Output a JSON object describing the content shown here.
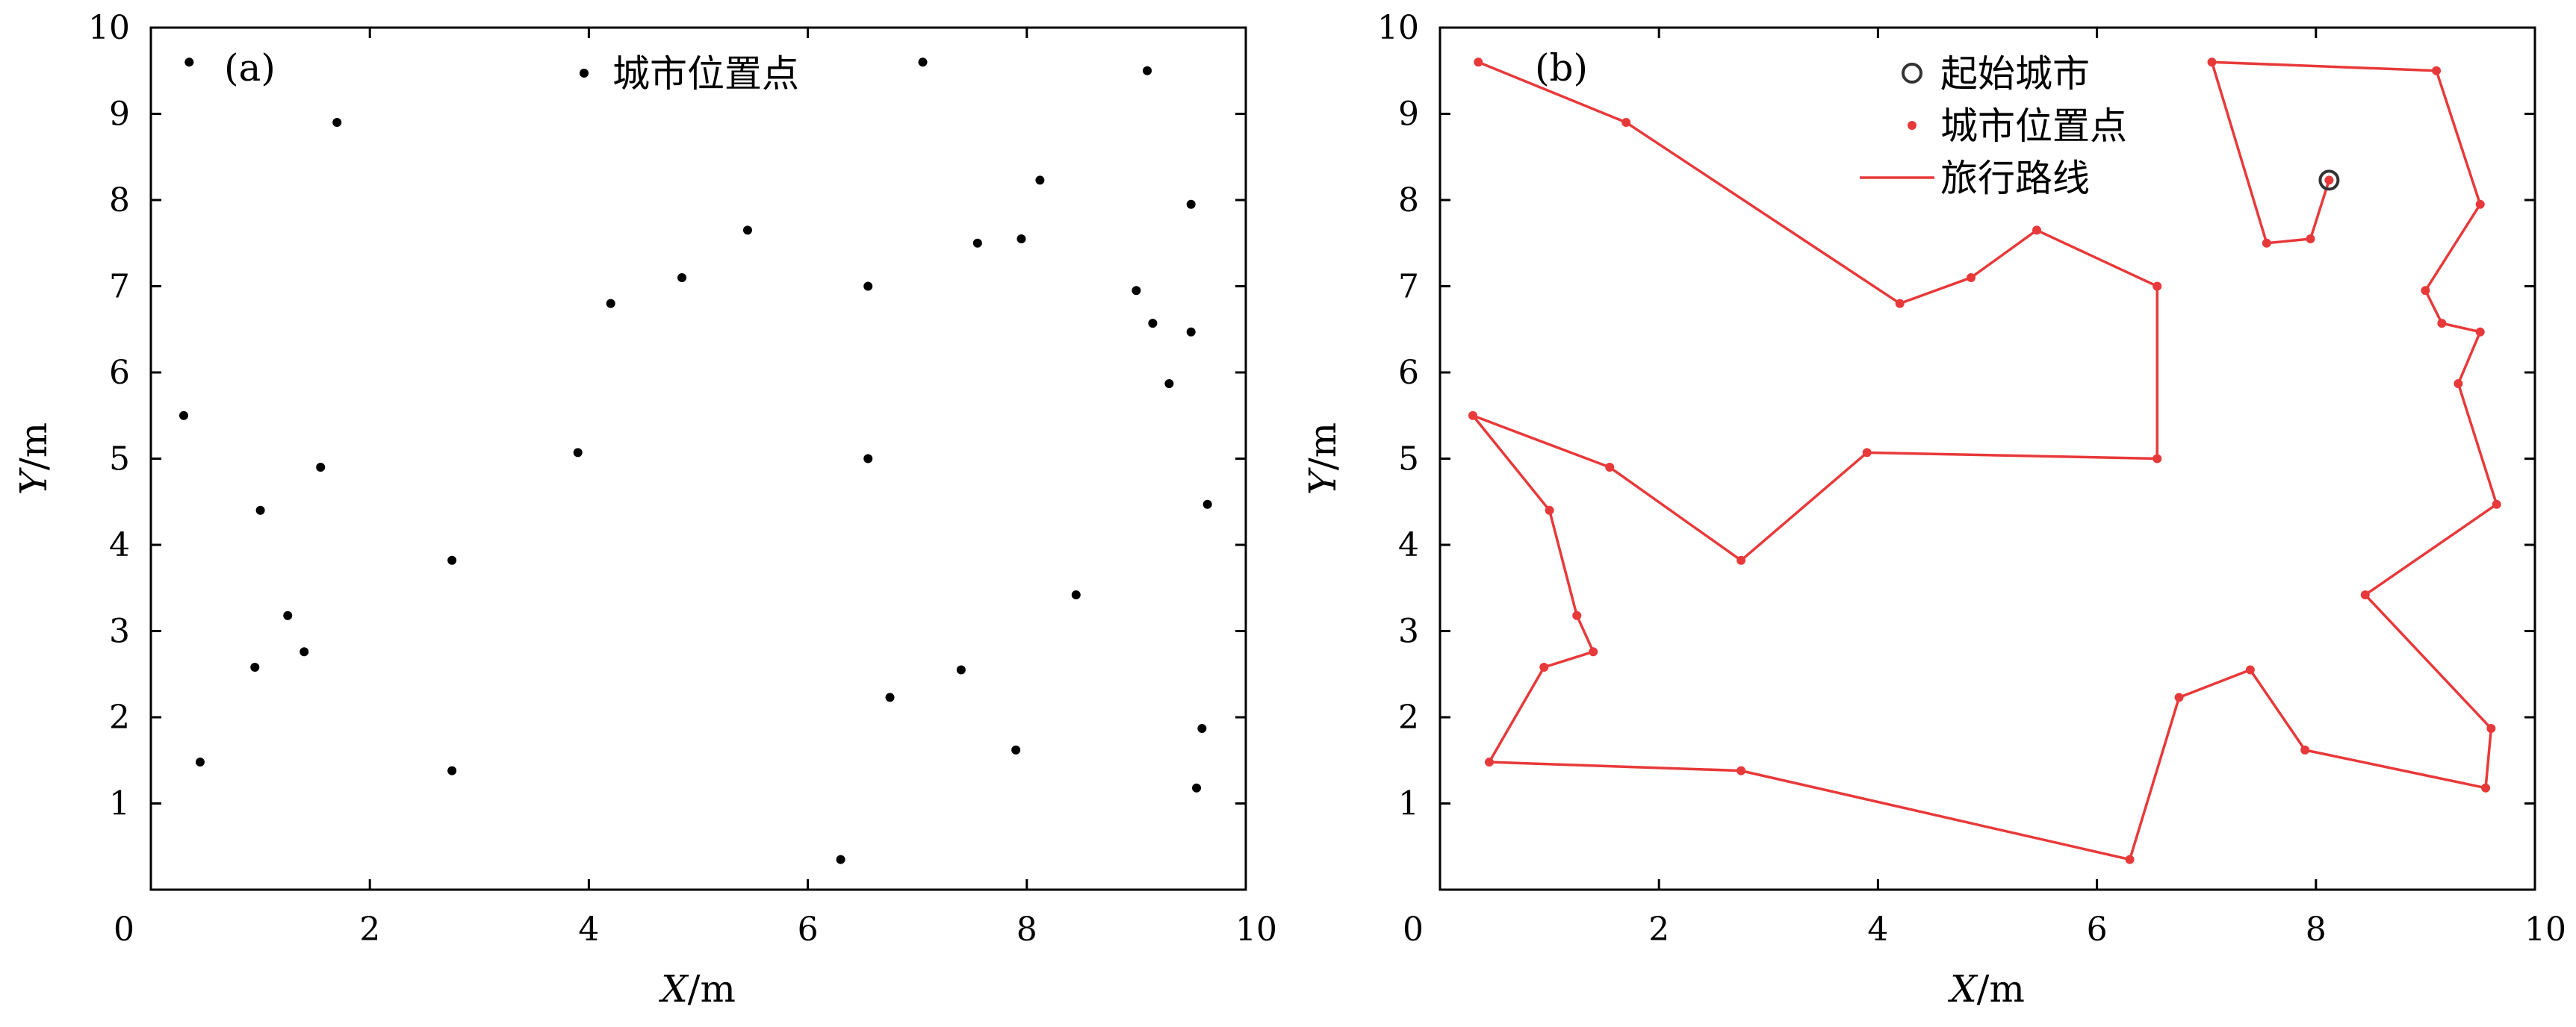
{
  "chart_data": [
    {
      "panel": "(a)",
      "type": "scatter",
      "xlabel_var": "X",
      "xlabel_unit": "/m",
      "ylabel_var": "Y",
      "ylabel_unit": "/m",
      "xlim": [
        0,
        10
      ],
      "ylim": [
        0,
        10
      ],
      "xticks": [
        "0",
        "2",
        "4",
        "6",
        "8",
        "10"
      ],
      "yticks": [
        "1",
        "2",
        "3",
        "4",
        "5",
        "6",
        "7",
        "8",
        "9",
        "10"
      ],
      "legend": [
        {
          "label": "城市位置点",
          "marker": "dot",
          "color": "#000000"
        }
      ],
      "series": [
        {
          "name": "城市位置点",
          "color": "#000000",
          "points": [
            [
              0.35,
              9.6
            ],
            [
              1.7,
              8.9
            ],
            [
              0.3,
              5.5
            ],
            [
              1.0,
              4.4
            ],
            [
              1.55,
              4.9
            ],
            [
              1.25,
              3.18
            ],
            [
              1.4,
              2.76
            ],
            [
              0.95,
              2.58
            ],
            [
              0.45,
              1.48
            ],
            [
              2.75,
              3.82
            ],
            [
              2.75,
              1.38
            ],
            [
              3.9,
              5.07
            ],
            [
              4.2,
              6.8
            ],
            [
              4.85,
              7.1
            ],
            [
              5.45,
              7.65
            ],
            [
              6.55,
              7.0
            ],
            [
              6.55,
              5.0
            ],
            [
              7.05,
              9.6
            ],
            [
              7.55,
              7.5
            ],
            [
              7.95,
              7.55
            ],
            [
              8.12,
              8.23
            ],
            [
              9.1,
              9.5
            ],
            [
              9.5,
              7.95
            ],
            [
              9.0,
              6.95
            ],
            [
              9.15,
              6.57
            ],
            [
              9.5,
              6.47
            ],
            [
              9.3,
              5.87
            ],
            [
              9.65,
              4.47
            ],
            [
              8.45,
              3.42
            ],
            [
              9.6,
              1.87
            ],
            [
              9.55,
              1.18
            ],
            [
              7.9,
              1.62
            ],
            [
              7.4,
              2.55
            ],
            [
              6.75,
              2.23
            ],
            [
              6.3,
              0.35
            ]
          ]
        }
      ]
    },
    {
      "panel": "(b)",
      "type": "line",
      "xlabel_var": "X",
      "xlabel_unit": "/m",
      "ylabel_var": "Y",
      "ylabel_unit": "/m",
      "xlim": [
        0,
        10
      ],
      "ylim": [
        0,
        10
      ],
      "xticks": [
        "0",
        "2",
        "4",
        "6",
        "8",
        "10"
      ],
      "yticks": [
        "1",
        "2",
        "3",
        "4",
        "5",
        "6",
        "7",
        "8",
        "9",
        "10"
      ],
      "legend": [
        {
          "label": "起始城市",
          "marker": "open-circle",
          "color": "#333333"
        },
        {
          "label": "城市位置点",
          "marker": "dot",
          "color": "#e8393a"
        },
        {
          "label": "旅行路线",
          "marker": "line",
          "color": "#e8393a"
        }
      ],
      "start_city": [
        8.12,
        8.23
      ],
      "route_color": "#e8393a",
      "route": [
        [
          8.12,
          8.23
        ],
        [
          7.95,
          7.55
        ],
        [
          7.55,
          7.5
        ],
        [
          7.05,
          9.6
        ],
        [
          9.1,
          9.5
        ],
        [
          9.5,
          7.95
        ],
        [
          9.0,
          6.95
        ],
        [
          9.15,
          6.57
        ],
        [
          9.5,
          6.47
        ],
        [
          9.3,
          5.87
        ],
        [
          9.65,
          4.47
        ],
        [
          8.45,
          3.42
        ],
        [
          9.6,
          1.87
        ],
        [
          9.55,
          1.18
        ],
        [
          7.9,
          1.62
        ],
        [
          7.4,
          2.55
        ],
        [
          6.75,
          2.23
        ],
        [
          6.3,
          0.35
        ],
        [
          2.75,
          1.38
        ],
        [
          0.45,
          1.48
        ],
        [
          0.95,
          2.58
        ],
        [
          1.4,
          2.76
        ],
        [
          1.25,
          3.18
        ],
        [
          1.0,
          4.4
        ],
        [
          0.3,
          5.5
        ],
        [
          1.55,
          4.9
        ],
        [
          2.75,
          3.82
        ],
        [
          3.9,
          5.07
        ],
        [
          6.55,
          5.0
        ],
        [
          6.55,
          7.0
        ],
        [
          5.45,
          7.65
        ],
        [
          4.85,
          7.1
        ],
        [
          4.2,
          6.8
        ],
        [
          1.7,
          8.9
        ],
        [
          0.35,
          9.6
        ]
      ]
    }
  ]
}
